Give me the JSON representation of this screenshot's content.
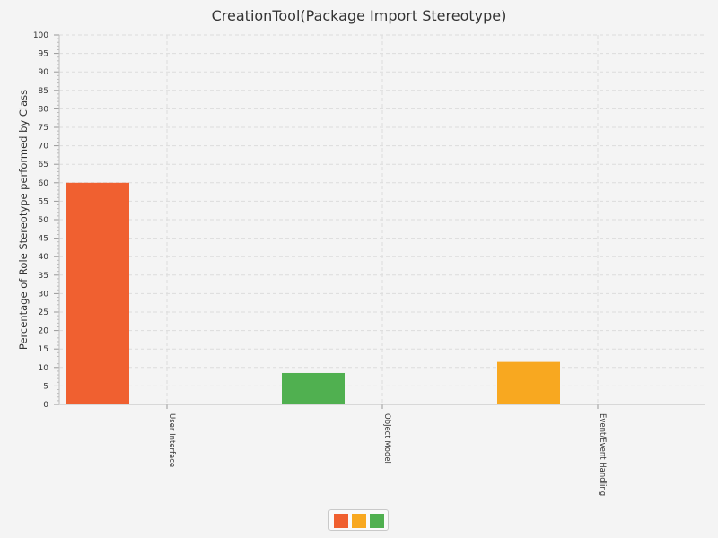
{
  "chart_data": {
    "type": "bar",
    "title": "CreationTool(Package Import Stereotype)",
    "xlabel": "",
    "ylabel": "Percentage of Role Stereotype performed by Class",
    "categories": [
      "User Interface",
      "Object Model",
      "Event/Event Handling"
    ],
    "series": [
      {
        "values": [
          60,
          8.5,
          11.5
        ],
        "colors": [
          "#f06030",
          "#50b050",
          "#f8a820"
        ]
      }
    ],
    "ylim": [
      0,
      100
    ],
    "ytick_step": 5,
    "grid": true,
    "legend": {
      "placement": "bottom-center",
      "swatches": [
        "#f06030",
        "#f8a820",
        "#50b050"
      ]
    }
  }
}
